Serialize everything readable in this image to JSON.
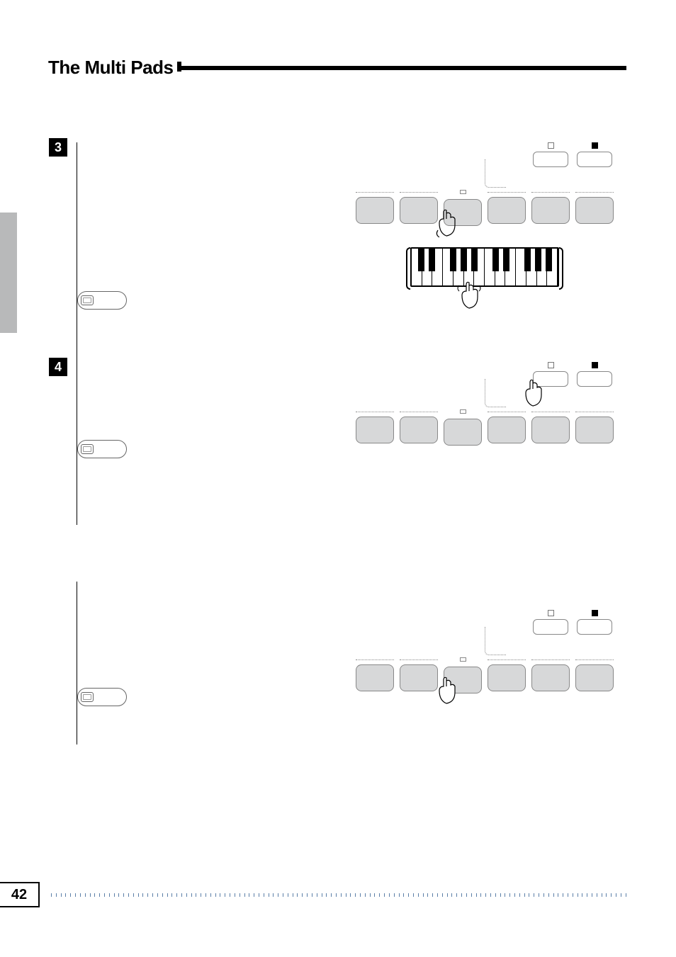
{
  "title": "The Multi Pads",
  "steps": {
    "s3": "3",
    "s4": "4"
  },
  "page_number": "42",
  "colors": {
    "pad_fill": "#d7d8d9",
    "stroke": "#888888",
    "dot": "#5b7fa8",
    "gray_tab": "#b8b9ba"
  }
}
